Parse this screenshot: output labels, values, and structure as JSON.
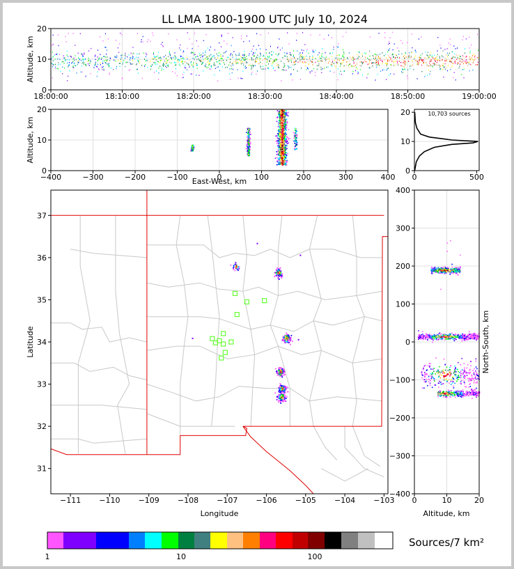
{
  "title": "LL LMA 1800-1900 UTC July 10, 2024",
  "time_panel": {
    "ylabel": "Altitude, km",
    "xticks": [
      "18:00:00",
      "18:10:00",
      "18:20:00",
      "18:30:00",
      "18:40:00",
      "18:50:00",
      "19:00:00"
    ],
    "yticks": [
      "0",
      "10",
      "20"
    ]
  },
  "ew_panel": {
    "ylabel": "Altitude, km",
    "xlabel": "East-West, km",
    "xticks": [
      "−400",
      "−300",
      "−200",
      "−100",
      "0",
      "100",
      "200",
      "300",
      "400"
    ],
    "yticks": [
      "0",
      "10",
      "20"
    ]
  },
  "hist_panel": {
    "annotation": "10,703 sources",
    "xticks": [
      "0",
      "500"
    ],
    "yticks": [
      "0",
      "10",
      "20"
    ]
  },
  "map_panel": {
    "xlabel": "Longitude",
    "ylabel": "Latitude",
    "xticks": [
      "−111",
      "−110",
      "−109",
      "−108",
      "−107",
      "−106",
      "−105",
      "−104",
      "−103"
    ],
    "yticks": [
      "31",
      "32",
      "33",
      "34",
      "35",
      "36",
      "37"
    ]
  },
  "ns_panel": {
    "xlabel": "Altitude, km",
    "ylabel": "North-South, km",
    "xticks": [
      "0",
      "10",
      "20"
    ],
    "yticks": [
      "−400",
      "−300",
      "−200",
      "−100",
      "0",
      "100",
      "200",
      "300",
      "400"
    ]
  },
  "colorbar": {
    "label": "Sources/7 km²",
    "ticks": [
      "1",
      "10",
      "100"
    ],
    "colors": [
      "#ff55ff",
      "#8000ff",
      "#0000ff",
      "#0080ff",
      "#00ffff",
      "#00ff00",
      "#008040",
      "#408080",
      "#ffff00",
      "#ffc080",
      "#ff8000",
      "#ff0080",
      "#ff0000",
      "#c00000",
      "#800000",
      "#000000",
      "#808080",
      "#c0c0c0",
      "#ffffff"
    ]
  },
  "chart_data": [
    {
      "type": "scatter",
      "title": "LL LMA 1800-1900 UTC July 10, 2024",
      "xlabel": "",
      "ylabel": "Altitude, km",
      "xlim": [
        "18:00:00",
        "19:00:00"
      ],
      "ylim": [
        0,
        20
      ],
      "grid": true,
      "series_summary": "source altitude vs time, dense band 7-13 km"
    },
    {
      "type": "scatter",
      "xlabel": "East-West, km",
      "ylabel": "Altitude, km",
      "xlim": [
        -400,
        400
      ],
      "ylim": [
        0,
        20
      ],
      "grid": true,
      "clusters": [
        {
          "x": -65,
          "alt_range": [
            6.5,
            8.5
          ]
        },
        {
          "x": 68,
          "alt_range": [
            5,
            14
          ]
        },
        {
          "x": 148,
          "alt_range": [
            2,
            20
          ]
        },
        {
          "x": 180,
          "alt_range": [
            7,
            14
          ]
        }
      ]
    },
    {
      "type": "line",
      "xlabel": "",
      "ylabel": "",
      "xlim": [
        0,
        520
      ],
      "ylim": [
        0,
        21
      ],
      "total_sources": 10703,
      "x": [
        2,
        15,
        40,
        80,
        160,
        300,
        470,
        510,
        300,
        120,
        50,
        20,
        8,
        3
      ],
      "y": [
        0,
        3,
        5,
        6.5,
        8,
        9,
        9.5,
        10,
        10.5,
        11.5,
        12.5,
        14.5,
        16.5,
        20
      ]
    },
    {
      "type": "scatter",
      "xlabel": "Longitude",
      "ylabel": "Latitude",
      "xlim": [
        -111.5,
        -102.9
      ],
      "ylim": [
        30.4,
        37.6
      ],
      "grid": false,
      "stations": [
        [
          -107.38,
          34.08
        ],
        [
          -107.2,
          34.03
        ],
        [
          -107.1,
          34.2
        ],
        [
          -107.1,
          33.95
        ],
        [
          -107.05,
          33.75
        ],
        [
          -106.9,
          34.0
        ],
        [
          -106.75,
          34.65
        ],
        [
          -106.5,
          34.95
        ],
        [
          -106.05,
          34.98
        ],
        [
          -106.8,
          35.15
        ],
        [
          -107.15,
          33.62
        ],
        [
          -107.3,
          33.98
        ]
      ],
      "clusters": [
        {
          "lon": -106.8,
          "lat": 35.8
        },
        {
          "lon": -105.7,
          "lat": 35.65
        },
        {
          "lon": -105.5,
          "lat": 34.1
        },
        {
          "lon": -105.65,
          "lat": 33.3
        },
        {
          "lon": -105.6,
          "lat": 32.9
        },
        {
          "lon": -105.62,
          "lat": 32.7
        }
      ]
    },
    {
      "type": "scatter",
      "xlabel": "Altitude, km",
      "ylabel": "North-South, km",
      "xlim": [
        0,
        20
      ],
      "ylim": [
        -400,
        400
      ],
      "grid": true,
      "clusters": [
        {
          "ns": 190,
          "alt_range": [
            5,
            14
          ]
        },
        {
          "ns": 15,
          "alt_range": [
            1,
            20
          ]
        },
        {
          "ns": -85,
          "alt_range": [
            2,
            20
          ]
        },
        {
          "ns": -135,
          "alt_range": [
            7,
            20
          ]
        }
      ]
    }
  ]
}
